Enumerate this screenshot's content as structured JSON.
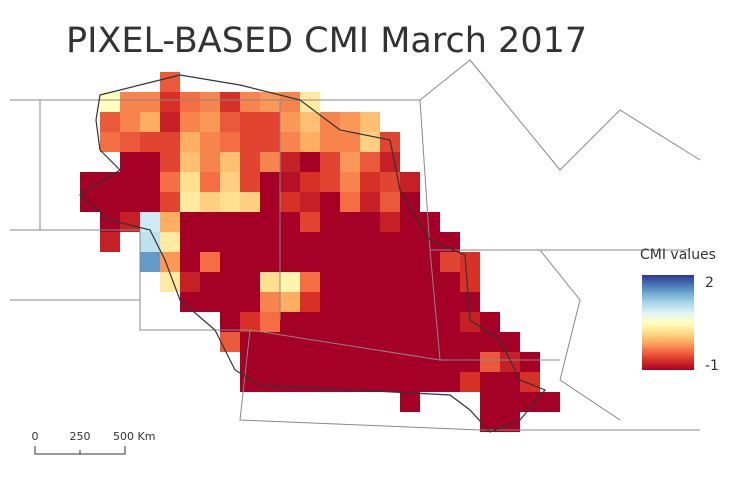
{
  "title": "PIXEL-BASED CMI March 2017",
  "legend": {
    "title": "CMI values",
    "max": 2,
    "min": -1,
    "colors": [
      "#a50026",
      "#d73027",
      "#f46d43",
      "#fdae61",
      "#fee090",
      "#ffffbf",
      "#e0f3f8",
      "#abd9e9",
      "#74add1",
      "#4575b4",
      "#313695"
    ]
  },
  "scale_bar": {
    "labels": [
      "0",
      "250",
      "500 Km"
    ]
  },
  "cells": [
    [
      null,
      null,
      null,
      null,
      -0.5
    ],
    [
      null,
      0.5,
      -0.3,
      -0.3,
      -0.7,
      -0.4,
      -0.3,
      -0.7,
      -0.3,
      -0.2,
      -0.3,
      0.3
    ],
    [
      null,
      -0.5,
      -0.3,
      -0.1,
      -0.8,
      -0.3,
      -0.2,
      -0.5,
      -0.6,
      -0.6,
      -0.2,
      0,
      -0.3,
      -0.2,
      0
    ],
    [
      null,
      -0.4,
      -0.5,
      -0.6,
      -0.6,
      -0.1,
      -0.3,
      -0.4,
      -0.6,
      -0.6,
      -0.3,
      -0.1,
      -0.3,
      -0.3,
      0.1,
      -0.6
    ],
    [
      null,
      null,
      -1,
      -1,
      -0.6,
      0,
      -0.3,
      0,
      -0.6,
      -0.3,
      -0.8,
      -1,
      -0.6,
      -0.2,
      -0.5,
      -0.8
    ],
    [
      -1,
      -1,
      -1,
      -1,
      -0.4,
      0.2,
      -0.4,
      0.1,
      -0.6,
      -1,
      -0.9,
      -0.7,
      -0.6,
      -0.3,
      -0.7,
      -0.6,
      -0.8
    ],
    [
      -1,
      -1,
      -1,
      -1,
      -0.6,
      0.3,
      0.1,
      0.2,
      0.1,
      -1,
      -0.7,
      -0.8,
      -1,
      -0.4,
      -0.8,
      -0.5,
      -1
    ],
    [
      null,
      -1,
      -0.8,
      0.9,
      -0.1,
      -1,
      -1,
      -1,
      -1,
      -1,
      -1,
      -0.6,
      -1,
      -1,
      -1,
      -0.8,
      -1,
      -1
    ],
    [
      null,
      -0.8,
      null,
      1.0,
      0.3,
      -1,
      -1,
      -1,
      -1,
      -1,
      -1,
      -1,
      -1,
      -1,
      -1,
      -1,
      -1,
      -1,
      -1
    ],
    [
      null,
      null,
      null,
      1.5,
      -0.2,
      -1,
      -0.4,
      -1,
      -1,
      -1,
      -1,
      -1,
      -1,
      -1,
      -1,
      -1,
      -1,
      -1,
      -0.6,
      -0.7
    ],
    [
      null,
      null,
      null,
      null,
      0.3,
      -0.8,
      -1,
      -1,
      -1,
      0.2,
      0.4,
      -0.4,
      -1,
      -1,
      -1,
      -1,
      -1,
      -1,
      -1,
      -0.7
    ],
    [
      null,
      null,
      null,
      null,
      null,
      -1,
      -1,
      -1,
      -1,
      -0.3,
      -0.1,
      -0.7,
      -1,
      -1,
      -1,
      -1,
      -1,
      -1,
      -1,
      -1
    ],
    [
      null,
      null,
      null,
      null,
      null,
      null,
      null,
      -1,
      -0.7,
      -0.4,
      -1,
      -1,
      -1,
      -1,
      -1,
      -1,
      -1,
      -1,
      -1,
      -0.8,
      -1
    ],
    [
      null,
      null,
      null,
      null,
      null,
      null,
      null,
      -0.5,
      -1,
      -1,
      -1,
      -1,
      -1,
      -1,
      -1,
      -1,
      -1,
      -1,
      -1,
      -1,
      -1,
      -1
    ],
    [
      null,
      null,
      null,
      null,
      null,
      null,
      null,
      null,
      -1,
      -1,
      -1,
      -1,
      -1,
      -1,
      -1,
      -1,
      -1,
      -1,
      -1,
      -1,
      -0.5,
      -0.8,
      -1
    ],
    [
      null,
      null,
      null,
      null,
      null,
      null,
      null,
      null,
      -1,
      -1,
      -1,
      -1,
      -1,
      -1,
      -1,
      -1,
      -1,
      -1,
      -1,
      -0.7,
      -1,
      -1,
      -0.7
    ],
    [
      null,
      null,
      null,
      null,
      null,
      null,
      null,
      null,
      null,
      null,
      null,
      null,
      null,
      null,
      null,
      null,
      -1,
      null,
      null,
      null,
      -1,
      -1,
      -1,
      -1
    ],
    [
      null,
      null,
      null,
      null,
      null,
      null,
      null,
      null,
      null,
      null,
      null,
      null,
      null,
      null,
      null,
      null,
      null,
      null,
      null,
      null,
      -1,
      -1
    ]
  ]
}
